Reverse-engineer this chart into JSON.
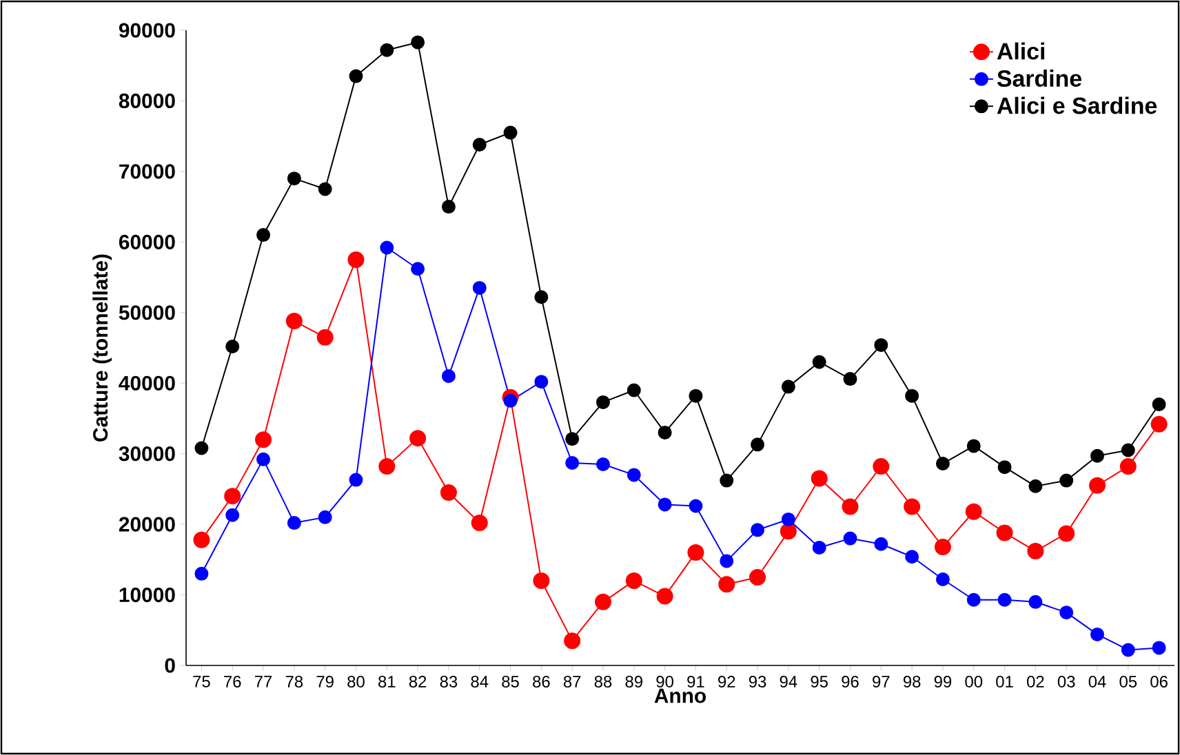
{
  "chart_data": {
    "type": "line",
    "xlabel": "Anno",
    "ylabel": "Catture (tonnellate)",
    "categories": [
      "75",
      "76",
      "77",
      "78",
      "79",
      "80",
      "81",
      "82",
      "83",
      "84",
      "85",
      "86",
      "87",
      "88",
      "89",
      "90",
      "91",
      "92",
      "93",
      "94",
      "95",
      "96",
      "97",
      "98",
      "99",
      "00",
      "01",
      "02",
      "03",
      "04",
      "05",
      "06"
    ],
    "series": [
      {
        "name": "Alici",
        "color": "#ff0000",
        "values": [
          17800,
          24000,
          32000,
          48800,
          46500,
          57500,
          28200,
          32200,
          24500,
          20200,
          38000,
          12000,
          3500,
          9000,
          12000,
          9800,
          16000,
          11500,
          12500,
          19000,
          26500,
          22500,
          28200,
          22500,
          16800,
          21800,
          18800,
          16200,
          18700,
          25500,
          28200,
          34200
        ]
      },
      {
        "name": "Sardine",
        "color": "#0000ff",
        "values": [
          13000,
          21300,
          29200,
          20200,
          21000,
          26300,
          59200,
          56200,
          41000,
          53500,
          37500,
          40200,
          28700,
          28500,
          27000,
          22800,
          22600,
          14800,
          19200,
          20700,
          16700,
          18000,
          17200,
          15400,
          12200,
          9300,
          9300,
          9000,
          7500,
          4400,
          2200,
          2500
        ]
      },
      {
        "name": "Alici e Sardine",
        "color": "#000000",
        "values": [
          30800,
          45200,
          61000,
          69000,
          67500,
          83500,
          87200,
          88300,
          65000,
          73800,
          75500,
          52200,
          32100,
          37300,
          39000,
          33000,
          38200,
          26200,
          31300,
          39500,
          43000,
          40600,
          45400,
          38200,
          28600,
          31100,
          28100,
          25400,
          26200,
          29700,
          30500,
          37000
        ]
      }
    ],
    "ylim": [
      0,
      90000
    ],
    "yticks": [
      0,
      10000,
      20000,
      30000,
      40000,
      50000,
      60000,
      70000,
      80000,
      90000
    ],
    "grid": false,
    "legend": "top right",
    "marker": "circle",
    "line_style": "solid"
  }
}
